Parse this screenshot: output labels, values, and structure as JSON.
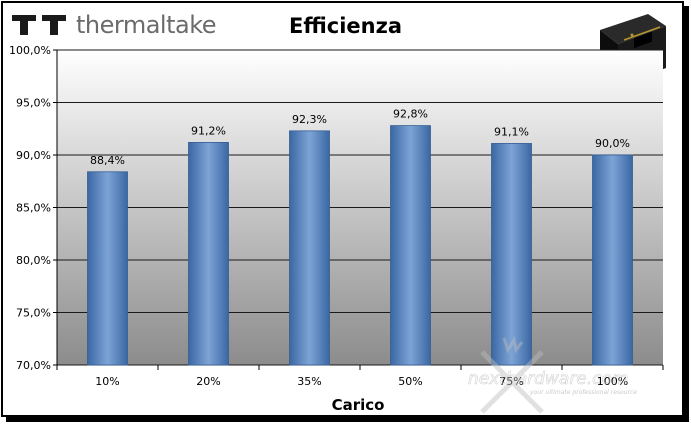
{
  "brand": {
    "name": "thermaltake"
  },
  "watermark": {
    "text": "nexthardware.com",
    "tagline": "your ultimate professional resource"
  },
  "product_icon": "psu-product-photo",
  "colors": {
    "bar": "#4f81bd",
    "bar_light": "#7ea4d6",
    "bar_dark": "#3a67a3",
    "plot_top": "#ffffff",
    "plot_bottom": "#8c8c8c",
    "grid": "#1a1a1a"
  },
  "chart_data": {
    "type": "bar",
    "title": "Efficienza",
    "xlabel": "Carico",
    "ylabel": "",
    "categories": [
      "10%",
      "20%",
      "35%",
      "50%",
      "75%",
      "100%"
    ],
    "values": [
      88.4,
      91.2,
      92.3,
      92.8,
      91.1,
      90.0
    ],
    "value_labels": [
      "88,4%",
      "91,2%",
      "92,3%",
      "92,8%",
      "91,1%",
      "90,0%"
    ],
    "ylim": [
      70,
      100
    ],
    "yticks": [
      70,
      75,
      80,
      85,
      90,
      95,
      100
    ],
    "ytick_labels": [
      "70,0%",
      "75,0%",
      "80,0%",
      "85,0%",
      "90,0%",
      "95,0%",
      "100,0%"
    ],
    "grid": true,
    "legend": "none"
  }
}
